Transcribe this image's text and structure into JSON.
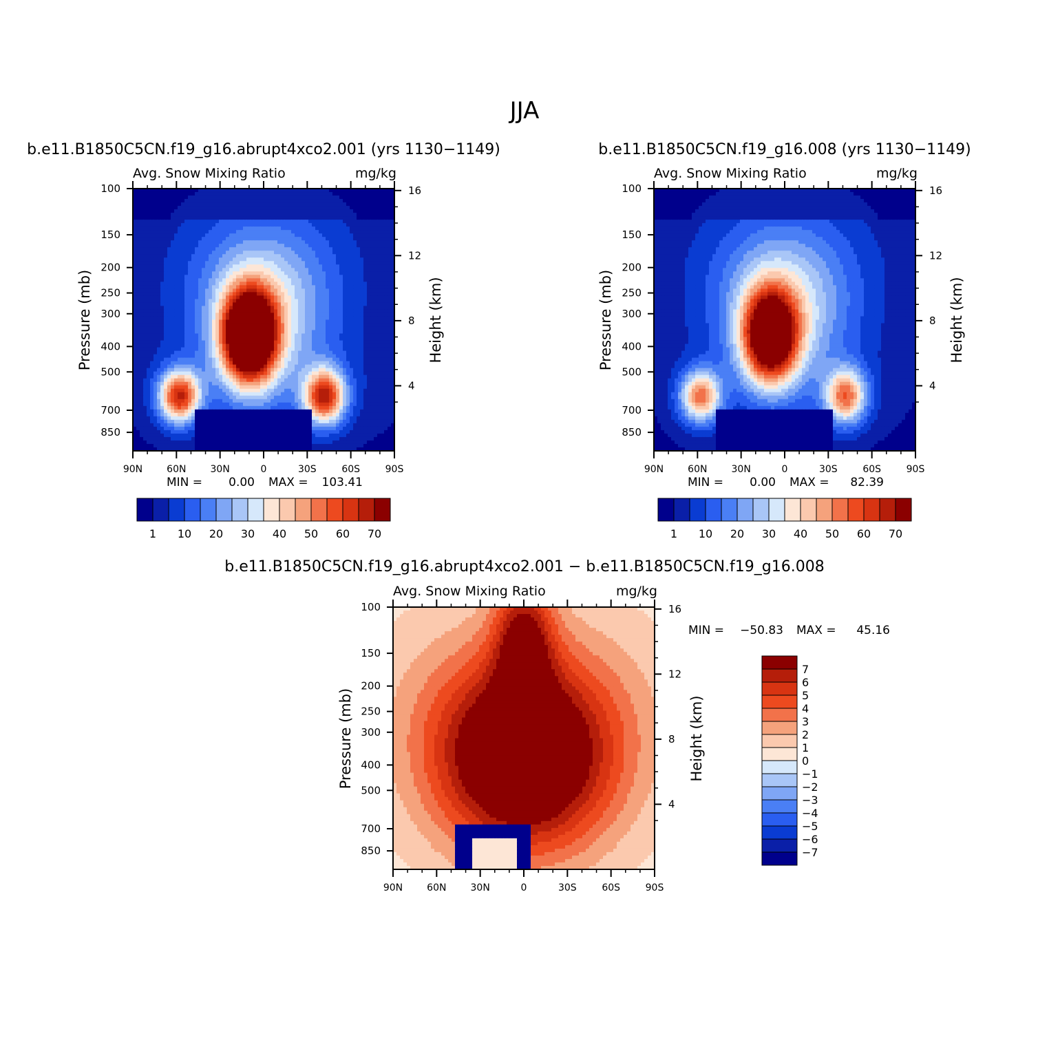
{
  "figure": {
    "title": "JJA"
  },
  "colors": {
    "seq_fill": [
      "#00008c",
      "#0a1fa8",
      "#0a3cd2",
      "#2a5ef0",
      "#4a7ff5",
      "#7fa6f5",
      "#a9c6f7",
      "#d6e8fb",
      "#fde6d6",
      "#fbc9ae",
      "#f5a27c",
      "#f2724a",
      "#ed4a1f",
      "#d83412",
      "#b51e0a",
      "#8b0000"
    ],
    "div_fill": [
      "#00008c",
      "#0a1fa8",
      "#0a3cd2",
      "#2a5ef0",
      "#4a7ff5",
      "#7fa6f5",
      "#a9c6f7",
      "#d6e8fb",
      "#fde6d6",
      "#fbc9ae",
      "#f5a27c",
      "#f2724a",
      "#ed4a1f",
      "#d83412",
      "#b51e0a",
      "#8b0000"
    ]
  },
  "chart_data": [
    {
      "type": "heatmap",
      "id": "case",
      "title": "b.e11.B1850C5CN.f19_g16.abrupt4xco2.001 (yrs 1130−1149)",
      "left_label": "Avg. Snow Mixing Ratio",
      "right_label": "mg/kg",
      "ylabel": "Pressure (mb)",
      "ylabel_right": "Height (km)",
      "x_ticks": [
        "90N",
        "60N",
        "30N",
        "0",
        "30S",
        "60S",
        "90S"
      ],
      "pressure_ticks": [
        "100",
        "150",
        "200",
        "250",
        "300",
        "400",
        "500",
        "700",
        "850"
      ],
      "height_ticks": [
        "16",
        "12",
        "8",
        "4"
      ],
      "min_label": "MIN =",
      "min_value": "0.00",
      "max_label": "MAX =",
      "max_value": "103.41",
      "colorbar_labels": [
        "1",
        "10",
        "20",
        "30",
        "40",
        "50",
        "60",
        "70"
      ],
      "field": {
        "baseline": 8,
        "stratosphere": 0,
        "tropical_core": 95,
        "midlat_peak": 62,
        "surface_minimum": 0
      }
    },
    {
      "type": "heatmap",
      "id": "control",
      "title": "b.e11.B1850C5CN.f19_g16.008 (yrs 1130−1149)",
      "left_label": "Avg. Snow Mixing Ratio",
      "right_label": "mg/kg",
      "ylabel": "Pressure (mb)",
      "ylabel_right": "Height (km)",
      "x_ticks": [
        "90N",
        "60N",
        "30N",
        "0",
        "30S",
        "60S",
        "90S"
      ],
      "pressure_ticks": [
        "100",
        "150",
        "200",
        "250",
        "300",
        "400",
        "500",
        "700",
        "850"
      ],
      "height_ticks": [
        "16",
        "12",
        "8",
        "4"
      ],
      "min_label": "MIN =",
      "min_value": "0.00",
      "max_label": "MAX =",
      "max_value": "82.39",
      "colorbar_labels": [
        "1",
        "10",
        "20",
        "30",
        "40",
        "50",
        "60",
        "70"
      ],
      "field": {
        "baseline": 5,
        "stratosphere": 0,
        "tropical_core": 80,
        "midlat_peak": 50,
        "surface_minimum": 0
      }
    },
    {
      "type": "heatmap",
      "id": "difference",
      "title": "b.e11.B1850C5CN.f19_g16.abrupt4xco2.001 − b.e11.B1850C5CN.f19_g16.008",
      "left_label": "Avg. Snow Mixing Ratio",
      "right_label": "mg/kg",
      "ylabel": "Pressure (mb)",
      "ylabel_right": "Height (km)",
      "x_ticks": [
        "90N",
        "60N",
        "30N",
        "0",
        "30S",
        "60S",
        "90S"
      ],
      "pressure_ticks": [
        "100",
        "150",
        "200",
        "250",
        "300",
        "400",
        "500",
        "700",
        "850"
      ],
      "height_ticks": [
        "16",
        "12",
        "8",
        "4"
      ],
      "min_label": "MIN =",
      "min_value": "−50.83",
      "max_label": "MAX =",
      "max_value": "45.16",
      "colorbar_labels": [
        "7",
        "6",
        "5",
        "4",
        "3",
        "2",
        "1",
        "0",
        "−1",
        "−2",
        "−3",
        "−4",
        "−5",
        "−6",
        "−7"
      ],
      "field": {
        "baseline": 0.5,
        "upper_positive": 9,
        "lower_negative": -9,
        "surface_positive": 0.5
      }
    }
  ]
}
